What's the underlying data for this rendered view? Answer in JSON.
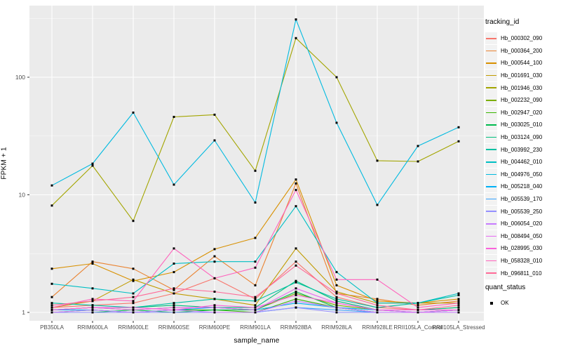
{
  "chart": {
    "ylabel": "FPKM + 1",
    "xlabel": "sample_name"
  },
  "legend": {
    "title": "tracking_id",
    "quant_title": "quant_status",
    "quant_value": "OK"
  },
  "colors": {
    "panel_bg": "#EBEBEB",
    "grid_major": "#FFFFFF",
    "grid_minor": "#F7F7F7",
    "tick_text": "#4D4D4D",
    "tick_mark": "#333333",
    "marker": "#000000",
    "legend_key_bg": "#F2F2F2"
  },
  "chart_data": {
    "type": "line",
    "title": "",
    "xlabel": "sample_name",
    "ylabel": "FPKM + 1",
    "y_scale": "log10",
    "ylim": [
      0.85,
      410
    ],
    "y_ticks": [
      1,
      10,
      100
    ],
    "y_minor_ticks": [
      3.16,
      31.6,
      316
    ],
    "grid": true,
    "legend_position": "right",
    "point_marker": "black-square",
    "point_legend": {
      "title": "quant_status",
      "label": "OK"
    },
    "categories": [
      "PB350LA",
      "RRIM600LA",
      "RRIM600LE",
      "RRIM600SE",
      "RRIM600PE",
      "RRIM901LA",
      "RRIM928BA",
      "RRIM928LA",
      "RRIM928LE",
      "RRII105LA_Control",
      "RRII105LA_Stressed"
    ],
    "series": [
      {
        "name": "Hb_000302_090",
        "color": "#F8766D",
        "values": [
          1.1,
          1.15,
          1.2,
          1.45,
          1.95,
          1.3,
          2.7,
          1.35,
          1.1,
          1.05,
          1.1
        ]
      },
      {
        "name": "Hb_000364_200",
        "color": "#EA8331",
        "values": [
          1.35,
          2.7,
          2.35,
          1.55,
          3.0,
          1.7,
          12.5,
          1.45,
          1.3,
          1.15,
          1.25
        ]
      },
      {
        "name": "Hb_000544_100",
        "color": "#D89000",
        "values": [
          2.35,
          2.6,
          1.85,
          2.2,
          3.45,
          4.3,
          13.5,
          1.7,
          1.25,
          1.2,
          1.3
        ]
      },
      {
        "name": "Hb_001691_030",
        "color": "#C09B00",
        "values": [
          1.1,
          1.25,
          1.9,
          1.45,
          1.3,
          1.15,
          3.5,
          1.5,
          1.2,
          1.2,
          1.2
        ]
      },
      {
        "name": "Hb_001946_030",
        "color": "#A3A500",
        "values": [
          8.1,
          17.7,
          6.0,
          46.0,
          48.0,
          16.0,
          215,
          100,
          19.5,
          19.2,
          28.5
        ]
      },
      {
        "name": "Hb_002232_090",
        "color": "#7CAE00",
        "values": [
          1.05,
          1.1,
          1.05,
          1.1,
          1.1,
          1.05,
          1.45,
          1.15,
          1.05,
          1.0,
          1.05
        ]
      },
      {
        "name": "Hb_002947_020",
        "color": "#39B600",
        "values": [
          1.0,
          1.05,
          1.0,
          1.05,
          1.05,
          1.0,
          1.3,
          1.1,
          1.0,
          1.0,
          1.0
        ]
      },
      {
        "name": "Hb_003025_010",
        "color": "#00BB4E",
        "values": [
          1.0,
          1.0,
          1.05,
          1.0,
          1.05,
          1.05,
          1.5,
          1.1,
          1.0,
          1.0,
          1.05
        ]
      },
      {
        "name": "Hb_003124_090",
        "color": "#00BF7D",
        "values": [
          1.05,
          1.1,
          1.1,
          1.15,
          1.1,
          1.1,
          1.85,
          1.25,
          1.05,
          1.05,
          1.1
        ]
      },
      {
        "name": "Hb_003992_230",
        "color": "#00C1A3",
        "values": [
          1.2,
          1.15,
          1.1,
          1.2,
          1.3,
          1.25,
          1.8,
          1.3,
          1.1,
          1.2,
          1.4
        ]
      },
      {
        "name": "Hb_004462_010",
        "color": "#00BFC4",
        "values": [
          1.75,
          1.6,
          1.45,
          2.6,
          2.7,
          2.7,
          8.0,
          2.2,
          1.2,
          1.2,
          1.45
        ]
      },
      {
        "name": "Hb_004976_050",
        "color": "#00BAE0",
        "values": [
          12.0,
          18.4,
          50.0,
          12.2,
          29.0,
          8.6,
          310,
          41.0,
          8.2,
          26.0,
          37.5
        ]
      },
      {
        "name": "Hb_005218_040",
        "color": "#00B0F6",
        "values": [
          1.05,
          1.05,
          1.0,
          1.05,
          1.1,
          1.05,
          1.2,
          1.1,
          1.05,
          1.0,
          1.05
        ]
      },
      {
        "name": "Hb_005539_170",
        "color": "#35A2FF",
        "values": [
          1.0,
          1.0,
          1.0,
          1.0,
          1.0,
          1.0,
          1.1,
          1.05,
          1.0,
          1.0,
          1.0
        ]
      },
      {
        "name": "Hb_005539_250",
        "color": "#9590FF",
        "values": [
          1.0,
          1.0,
          1.0,
          1.0,
          1.0,
          1.0,
          1.1,
          1.0,
          1.0,
          1.0,
          1.0
        ]
      },
      {
        "name": "Hb_006054_020",
        "color": "#C77CFF",
        "values": [
          1.0,
          1.05,
          1.0,
          1.05,
          1.0,
          1.0,
          1.25,
          1.1,
          1.0,
          1.0,
          1.0
        ]
      },
      {
        "name": "Hb_008494_050",
        "color": "#E76BF3",
        "values": [
          1.05,
          1.1,
          1.05,
          1.1,
          1.1,
          1.05,
          1.6,
          1.2,
          1.05,
          1.0,
          1.05
        ]
      },
      {
        "name": "Hb_028995_030",
        "color": "#FA62DB",
        "values": [
          1.05,
          1.1,
          1.1,
          1.05,
          1.15,
          1.1,
          1.4,
          1.2,
          1.05,
          1.05,
          1.05
        ]
      },
      {
        "name": "Hb_058328_010",
        "color": "#FF62BC",
        "values": [
          1.1,
          1.3,
          1.25,
          3.5,
          1.95,
          2.4,
          11.0,
          1.9,
          1.9,
          1.1,
          1.2
        ]
      },
      {
        "name": "Hb_096811_010",
        "color": "#FF6A98",
        "values": [
          1.15,
          1.25,
          1.35,
          1.6,
          1.5,
          1.35,
          2.5,
          1.45,
          1.15,
          1.05,
          1.15
        ]
      }
    ]
  }
}
